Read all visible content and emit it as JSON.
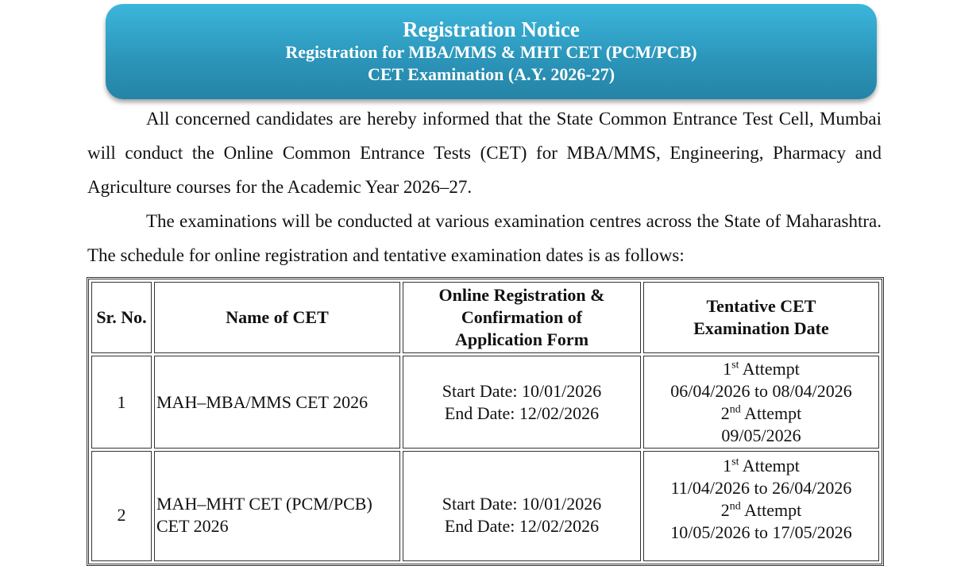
{
  "banner": {
    "title": "Registration Notice",
    "line2": "Registration for MBA/MMS & MHT CET (PCM/PCB)",
    "line3": "CET Examination (A.Y. 2026-27)"
  },
  "paragraphs": [
    "All concerned candidates are hereby informed that the State Common Entrance Test Cell, Mumbai will conduct the Online Common Entrance Tests (CET) for MBA/MMS, Engineering, Pharmacy and Agriculture courses for the Academic Year 2026–27.",
    "The examinations will be conducted at various examination centres across the State of Maharashtra. The schedule for online registration and tentative examination dates is as follows:"
  ],
  "table": {
    "headers": [
      "Sr. No.",
      "Name of CET",
      "Online Registration & Confirmation of Application Form",
      "Tentative CET Examination Date"
    ],
    "rows": [
      {
        "sr": "1",
        "name": "MAH–MBA/MMS CET 2026",
        "start": "Start Date: 10/01/2026",
        "end": "End Date: 12/02/2026",
        "a1_num": "1",
        "a1_sup": "st",
        "a1_label": "Attempt",
        "a1_dates": "06/04/2026 to 08/04/2026",
        "a2_num": "2",
        "a2_sup": "nd",
        "a2_label": "Attempt",
        "a2_dates": "09/05/2026"
      },
      {
        "sr": "2",
        "name": "MAH–MHT CET (PCM/PCB) CET 2026",
        "start": "Start Date: 10/01/2026",
        "end": "End Date: 12/02/2026",
        "a1_num": "1",
        "a1_sup": "st",
        "a1_label": "Attempt",
        "a1_dates": "11/04/2026 to 26/04/2026",
        "a2_num": "2",
        "a2_sup": "nd",
        "a2_label": "Attempt",
        "a2_dates": "10/05/2026 to 17/05/2026"
      }
    ]
  }
}
